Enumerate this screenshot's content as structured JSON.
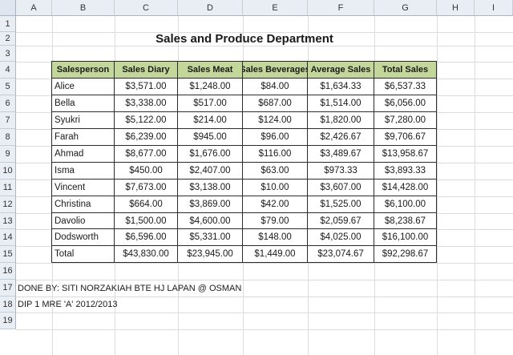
{
  "columns": [
    "A",
    "B",
    "C",
    "D",
    "E",
    "F",
    "G",
    "H",
    "I"
  ],
  "rows": [
    "1",
    "2",
    "3",
    "4",
    "5",
    "6",
    "7",
    "8",
    "9",
    "10",
    "11",
    "12",
    "13",
    "14",
    "15",
    "16",
    "17",
    "18",
    "19"
  ],
  "title": "Sales and Produce Department",
  "table": {
    "headers": [
      "Salesperson",
      "Sales Diary",
      "Sales Meat",
      "Sales Beverages",
      "Average Sales",
      "Total Sales"
    ],
    "rows": [
      [
        "Alice",
        "$3,571.00",
        "$1,248.00",
        "$84.00",
        "$1,634.33",
        "$6,537.33"
      ],
      [
        "Bella",
        "$3,338.00",
        "$517.00",
        "$687.00",
        "$1,514.00",
        "$6,056.00"
      ],
      [
        "Syukri",
        "$5,122.00",
        "$214.00",
        "$124.00",
        "$1,820.00",
        "$7,280.00"
      ],
      [
        "Farah",
        "$6,239.00",
        "$945.00",
        "$96.00",
        "$2,426.67",
        "$9,706.67"
      ],
      [
        "Ahmad",
        "$8,677.00",
        "$1,676.00",
        "$116.00",
        "$3,489.67",
        "$13,958.67"
      ],
      [
        "Isma",
        "$450.00",
        "$2,407.00",
        "$63.00",
        "$973.33",
        "$3,893.33"
      ],
      [
        "Vincent",
        "$7,673.00",
        "$3,138.00",
        "$10.00",
        "$3,607.00",
        "$14,428.00"
      ],
      [
        "Christina",
        "$664.00",
        "$3,869.00",
        "$42.00",
        "$1,525.00",
        "$6,100.00"
      ],
      [
        "Davolio",
        "$1,500.00",
        "$4,600.00",
        "$79.00",
        "$2,059.67",
        "$8,238.67"
      ],
      [
        "Dodsworth",
        "$6,596.00",
        "$5,331.00",
        "$148.00",
        "$4,025.00",
        "$16,100.00"
      ],
      [
        "Total",
        "$43,830.00",
        "$23,945.00",
        "$1,449.00",
        "$23,074.67",
        "$92,298.67"
      ]
    ]
  },
  "notes": [
    "DONE BY: SITI NORZAKIAH BTE HJ LAPAN @ OSMAN",
    "DIP 1 MRE 'A' 2012/2013"
  ],
  "colors": {
    "header_fill": "#c4d79b",
    "gridline": "#dadcdd",
    "header_bg": "#e9eef5"
  }
}
